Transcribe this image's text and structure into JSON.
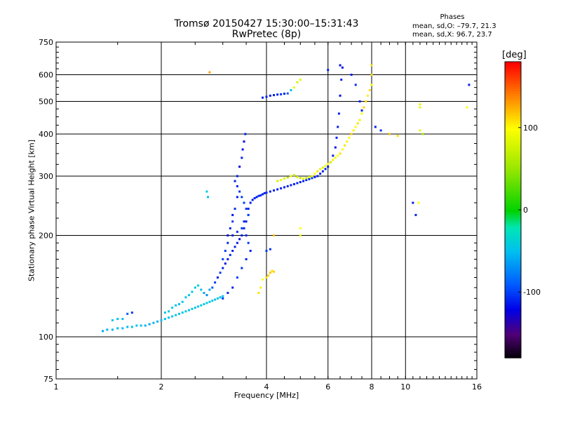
{
  "header": {
    "title_line1": "Tromsø 20150427 15:30:00–15:31:43",
    "title_line2": "RwPretec (8p)",
    "stats_title": "Phases",
    "stats_o": "mean, sd,O: –79.7, 21.3",
    "stats_x": "mean, sd,X:  96.7, 23.7"
  },
  "colorbar": {
    "unit_label": "[deg]",
    "ticks": [
      {
        "value": 100,
        "label": "100"
      },
      {
        "value": 0,
        "label": "0"
      },
      {
        "value": -100,
        "label": "-100"
      }
    ],
    "range": [
      -180,
      180
    ]
  },
  "chart_data": {
    "type": "scatter",
    "xlabel": "Frequency [MHz]",
    "ylabel": "Stationary phase Virtual Height [km]",
    "xscale": "log",
    "yscale": "log",
    "xlim": [
      1,
      16
    ],
    "ylim": [
      75,
      750
    ],
    "grid": true,
    "x_ticks": [
      {
        "value": 1,
        "label": "1"
      },
      {
        "value": 2,
        "label": "2"
      },
      {
        "value": 4,
        "label": "4"
      },
      {
        "value": 6,
        "label": "6"
      },
      {
        "value": 8,
        "label": "8"
      },
      {
        "value": 10,
        "label": "10"
      },
      {
        "value": 16,
        "label": "16"
      }
    ],
    "y_ticks": [
      {
        "value": 75,
        "label": "75"
      },
      {
        "value": 100,
        "label": "100"
      },
      {
        "value": 200,
        "label": "200"
      },
      {
        "value": 300,
        "label": "300"
      },
      {
        "value": 400,
        "label": "400"
      },
      {
        "value": 500,
        "label": "500"
      },
      {
        "value": 600,
        "label": "600"
      },
      {
        "value": 750,
        "label": "750"
      }
    ],
    "x_gridlines": [
      2,
      4,
      6,
      8,
      10
    ],
    "y_gridlines": [
      100,
      200,
      300,
      400,
      500,
      600
    ],
    "color_encoding": "phase_deg",
    "series": [
      {
        "points": [
          [
            1.36,
            104,
            -60
          ],
          [
            1.4,
            105,
            -55
          ],
          [
            1.45,
            105,
            -55
          ],
          [
            1.5,
            106,
            -52
          ],
          [
            1.55,
            106,
            -50
          ],
          [
            1.6,
            107,
            -50
          ],
          [
            1.65,
            107,
            -48
          ],
          [
            1.7,
            108,
            -48
          ],
          [
            1.75,
            108,
            -50
          ],
          [
            1.8,
            108,
            -55
          ],
          [
            1.85,
            109,
            -60
          ],
          [
            1.9,
            110,
            -55
          ],
          [
            1.95,
            111,
            -55
          ],
          [
            2.0,
            112,
            -50
          ],
          [
            2.05,
            113,
            -48
          ],
          [
            2.1,
            114,
            -50
          ],
          [
            2.15,
            115,
            -45
          ],
          [
            2.2,
            116,
            -45
          ],
          [
            2.25,
            117,
            -45
          ],
          [
            2.3,
            118,
            -45
          ],
          [
            2.35,
            119,
            -45
          ],
          [
            2.4,
            120,
            -45
          ],
          [
            2.45,
            121,
            -45
          ],
          [
            2.5,
            122,
            -48
          ],
          [
            2.55,
            123,
            -45
          ],
          [
            2.6,
            124,
            -40
          ],
          [
            2.65,
            125,
            -40
          ],
          [
            2.7,
            126,
            -40
          ],
          [
            2.75,
            127,
            -40
          ],
          [
            2.8,
            128,
            -45
          ],
          [
            2.85,
            129,
            -45
          ],
          [
            2.9,
            130,
            -45
          ],
          [
            2.95,
            131,
            -50
          ],
          [
            3.0,
            132,
            -50
          ],
          [
            1.45,
            112,
            -45
          ],
          [
            1.5,
            113,
            -45
          ],
          [
            1.55,
            113,
            -50
          ],
          [
            1.6,
            117,
            -90
          ],
          [
            1.65,
            118,
            -100
          ],
          [
            2.05,
            118,
            -45
          ],
          [
            2.1,
            119,
            -45
          ],
          [
            2.15,
            122,
            -40
          ],
          [
            2.2,
            124,
            -45
          ],
          [
            2.25,
            125,
            -50
          ],
          [
            2.3,
            127,
            -45
          ],
          [
            2.35,
            131,
            -45
          ],
          [
            2.4,
            133,
            -40
          ],
          [
            2.45,
            136,
            -45
          ],
          [
            2.5,
            140,
            -45
          ],
          [
            2.55,
            142,
            -40
          ],
          [
            2.6,
            138,
            -50
          ],
          [
            2.65,
            135,
            -60
          ],
          [
            2.7,
            133,
            -70
          ],
          [
            2.75,
            138,
            -60
          ],
          [
            2.8,
            140,
            -90
          ],
          [
            2.85,
            145,
            -100
          ]
        ]
      },
      {
        "points": [
          [
            2.9,
            150,
            -110
          ],
          [
            2.95,
            155,
            -100
          ],
          [
            3.0,
            160,
            -110
          ],
          [
            3.05,
            165,
            -115
          ],
          [
            3.1,
            170,
            -110
          ],
          [
            3.15,
            175,
            -105
          ],
          [
            3.2,
            180,
            -110
          ],
          [
            3.25,
            185,
            -110
          ],
          [
            3.3,
            190,
            -110
          ],
          [
            3.35,
            195,
            -115
          ],
          [
            3.4,
            200,
            -110
          ],
          [
            3.45,
            210,
            -110
          ],
          [
            3.5,
            220,
            -110
          ],
          [
            3.55,
            230,
            -105
          ],
          [
            3.55,
            240,
            -110
          ],
          [
            3.6,
            250,
            -110
          ],
          [
            3.65,
            255,
            -110
          ],
          [
            3.7,
            258,
            -110
          ],
          [
            3.75,
            260,
            -110
          ],
          [
            3.8,
            262,
            -105
          ],
          [
            3.85,
            263,
            -110
          ],
          [
            3.9,
            265,
            -110
          ],
          [
            3.95,
            267,
            -110
          ],
          [
            4.0,
            268,
            -105
          ],
          [
            4.1,
            270,
            -110
          ],
          [
            4.2,
            272,
            -110
          ],
          [
            4.3,
            274,
            -110
          ],
          [
            4.4,
            276,
            -110
          ],
          [
            4.5,
            278,
            -110
          ],
          [
            4.6,
            280,
            -110
          ],
          [
            4.7,
            282,
            -110
          ],
          [
            4.8,
            284,
            -110
          ],
          [
            4.9,
            286,
            -110
          ],
          [
            5.0,
            288,
            -110
          ],
          [
            5.1,
            290,
            -110
          ],
          [
            5.2,
            292,
            -110
          ],
          [
            5.3,
            294,
            -110
          ],
          [
            5.4,
            296,
            -105
          ],
          [
            5.5,
            298,
            -110
          ],
          [
            5.6,
            300,
            -110
          ],
          [
            5.7,
            305,
            -110
          ],
          [
            5.8,
            310,
            -110
          ],
          [
            5.9,
            315,
            -110
          ],
          [
            6.0,
            320,
            -110
          ],
          [
            6.1,
            330,
            -110
          ],
          [
            6.2,
            345,
            -110
          ],
          [
            6.3,
            365,
            -115
          ],
          [
            6.35,
            390,
            -110
          ],
          [
            6.4,
            420,
            -110
          ],
          [
            6.45,
            460,
            -110
          ],
          [
            6.5,
            520,
            -115
          ],
          [
            6.55,
            580,
            -110
          ],
          [
            6.6,
            630,
            -115
          ]
        ]
      },
      {
        "points": [
          [
            3.2,
            220,
            -100
          ],
          [
            3.25,
            240,
            -105
          ],
          [
            3.3,
            260,
            -110
          ],
          [
            3.3,
            300,
            -110
          ],
          [
            3.35,
            320,
            -120
          ],
          [
            3.4,
            340,
            -110
          ],
          [
            3.42,
            360,
            -115
          ],
          [
            3.45,
            380,
            -120
          ],
          [
            3.48,
            400,
            -110
          ],
          [
            3.4,
            260,
            -100
          ],
          [
            3.45,
            250,
            -100
          ],
          [
            3.5,
            240,
            -100
          ],
          [
            3.55,
            230,
            -95
          ],
          [
            3.35,
            270,
            -105
          ],
          [
            3.3,
            280,
            -110
          ],
          [
            3.25,
            290,
            -110
          ],
          [
            3.2,
            230,
            -115
          ],
          [
            3.15,
            210,
            -110
          ],
          [
            3.1,
            190,
            -105
          ],
          [
            3.05,
            180,
            -100
          ],
          [
            3.0,
            170,
            -100
          ],
          [
            3.1,
            200,
            -115
          ],
          [
            3.2,
            200,
            -110
          ],
          [
            3.3,
            205,
            -105
          ],
          [
            3.4,
            210,
            -100
          ],
          [
            3.45,
            220,
            -110
          ],
          [
            3.5,
            200,
            -105
          ],
          [
            3.55,
            190,
            -100
          ],
          [
            3.6,
            180,
            -110
          ],
          [
            3.5,
            170,
            -110
          ],
          [
            3.4,
            160,
            -105
          ],
          [
            3.3,
            150,
            -100
          ],
          [
            3.2,
            140,
            -110
          ],
          [
            3.1,
            135,
            -105
          ],
          [
            3.0,
            130,
            -100
          ]
        ]
      },
      {
        "points": [
          [
            4.0,
            150,
            110
          ],
          [
            4.05,
            152,
            115
          ],
          [
            4.1,
            155,
            120
          ],
          [
            4.15,
            157,
            110
          ],
          [
            4.2,
            156,
            115
          ],
          [
            3.9,
            148,
            100
          ],
          [
            3.85,
            140,
            105
          ],
          [
            3.8,
            135,
            110
          ],
          [
            4.3,
            290,
            80
          ],
          [
            4.4,
            292,
            90
          ],
          [
            4.5,
            295,
            85
          ],
          [
            4.6,
            297,
            70
          ],
          [
            4.7,
            300,
            95
          ],
          [
            4.8,
            302,
            70
          ],
          [
            4.9,
            298,
            80
          ],
          [
            5.0,
            296,
            70
          ],
          [
            5.1,
            295,
            85
          ],
          [
            5.2,
            296,
            70
          ],
          [
            5.3,
            298,
            80
          ],
          [
            5.4,
            300,
            90
          ],
          [
            5.5,
            305,
            100
          ],
          [
            5.6,
            310,
            110
          ],
          [
            5.7,
            315,
            90
          ],
          [
            5.8,
            318,
            80
          ],
          [
            5.9,
            322,
            95
          ],
          [
            6.0,
            326,
            100
          ],
          [
            6.1,
            330,
            90
          ],
          [
            6.2,
            335,
            105
          ],
          [
            6.3,
            340,
            95
          ],
          [
            6.4,
            345,
            100
          ],
          [
            6.5,
            350,
            110
          ],
          [
            6.6,
            360,
            100
          ],
          [
            6.7,
            370,
            110
          ],
          [
            6.8,
            380,
            105
          ],
          [
            6.9,
            390,
            100
          ],
          [
            7.0,
            400,
            115
          ],
          [
            7.1,
            410,
            105
          ],
          [
            7.2,
            420,
            100
          ],
          [
            7.3,
            430,
            110
          ],
          [
            7.4,
            440,
            90
          ],
          [
            7.5,
            460,
            100
          ],
          [
            7.6,
            480,
            115
          ],
          [
            7.7,
            500,
            110
          ],
          [
            7.8,
            520,
            105
          ],
          [
            7.9,
            540,
            110
          ],
          [
            8.0,
            560,
            100
          ],
          [
            8.0,
            600,
            110
          ],
          [
            8.0,
            640,
            110
          ]
        ]
      },
      {
        "points": [
          [
            3.9,
            513,
            -110
          ],
          [
            4.0,
            516,
            -110
          ],
          [
            4.1,
            520,
            -110
          ],
          [
            4.2,
            522,
            -110
          ],
          [
            4.3,
            524,
            -110
          ],
          [
            4.4,
            525,
            -105
          ],
          [
            4.5,
            527,
            -110
          ],
          [
            4.6,
            528,
            -90
          ],
          [
            4.7,
            540,
            -50
          ],
          [
            4.8,
            550,
            90
          ],
          [
            4.9,
            570,
            80
          ],
          [
            5.0,
            580,
            85
          ],
          [
            6.0,
            620,
            -110
          ],
          [
            6.5,
            640,
            -115
          ],
          [
            7.0,
            600,
            -110
          ],
          [
            7.2,
            560,
            -105
          ],
          [
            7.4,
            500,
            -110
          ],
          [
            7.5,
            470,
            -110
          ],
          [
            8.2,
            420,
            -110
          ],
          [
            8.5,
            410,
            -105
          ],
          [
            9.0,
            400,
            120
          ],
          [
            9.5,
            395,
            110
          ],
          [
            11.0,
            490,
            90
          ],
          [
            11.0,
            480,
            90
          ],
          [
            11.0,
            410,
            90
          ],
          [
            11.2,
            400,
            60
          ],
          [
            10.5,
            250,
            -110
          ],
          [
            10.7,
            230,
            -110
          ],
          [
            10.9,
            250,
            100
          ],
          [
            15.0,
            480,
            100
          ],
          [
            15.2,
            560,
            -110
          ],
          [
            2.75,
            610,
            130
          ],
          [
            2.7,
            270,
            -40
          ],
          [
            2.72,
            260,
            -50
          ],
          [
            4.2,
            200,
            120
          ],
          [
            5.0,
            210,
            100
          ],
          [
            5.0,
            200,
            90
          ],
          [
            4.0,
            180,
            -100
          ],
          [
            4.1,
            182,
            -105
          ]
        ]
      }
    ]
  }
}
